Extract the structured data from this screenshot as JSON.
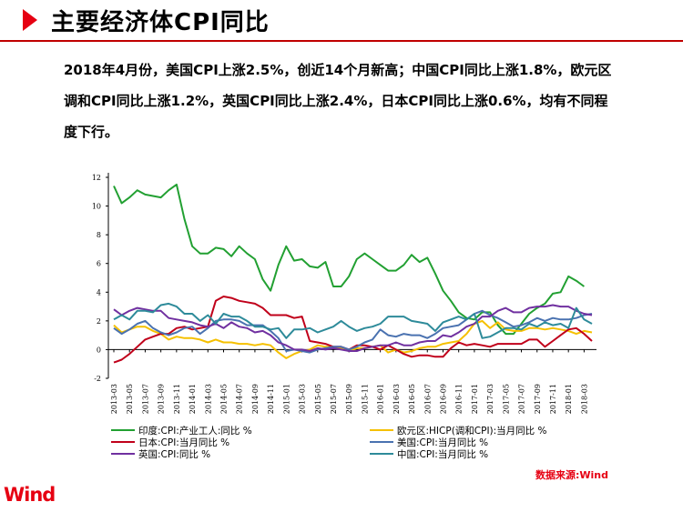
{
  "header": {
    "title": "主要经济体CPI同比",
    "description": "2018年4月份，美国CPI上涨2.5%，创近14个月新高；中国CPI同比上涨1.8%，欧元区调和CPI同比上涨1.2%，英国CPI同比上涨2.4%，日本CPI同比上涨0.6%，均有不同程度下行。"
  },
  "footer": {
    "source": "数据来源:Wind",
    "logo": "Wind"
  },
  "chart_data": {
    "type": "line",
    "ylim": [
      -2,
      12
    ],
    "yticks": [
      -2,
      0,
      2,
      4,
      6,
      8,
      10,
      12
    ],
    "x": [
      "2013-03",
      "2013-04",
      "2013-05",
      "2013-06",
      "2013-07",
      "2013-08",
      "2013-09",
      "2013-10",
      "2013-11",
      "2013-12",
      "2014-01",
      "2014-02",
      "2014-03",
      "2014-04",
      "2014-05",
      "2014-06",
      "2014-07",
      "2014-08",
      "2014-09",
      "2014-10",
      "2014-11",
      "2014-12",
      "2015-01",
      "2015-02",
      "2015-03",
      "2015-04",
      "2015-05",
      "2015-06",
      "2015-07",
      "2015-08",
      "2015-09",
      "2015-10",
      "2015-11",
      "2015-12",
      "2016-01",
      "2016-02",
      "2016-03",
      "2016-04",
      "2016-05",
      "2016-06",
      "2016-07",
      "2016-08",
      "2016-09",
      "2016-10",
      "2016-11",
      "2016-12",
      "2017-01",
      "2017-02",
      "2017-03",
      "2017-04",
      "2017-05",
      "2017-06",
      "2017-07",
      "2017-08",
      "2017-09",
      "2017-10",
      "2017-11",
      "2017-12",
      "2018-01",
      "2018-02",
      "2018-03",
      "2018-04"
    ],
    "xticks": [
      "2013-03",
      "2013-05",
      "2013-07",
      "2013-09",
      "2013-11",
      "2014-01",
      "2014-03",
      "2014-05",
      "2014-07",
      "2014-09",
      "2014-11",
      "2015-01",
      "2015-03",
      "2015-05",
      "2015-07",
      "2015-09",
      "2015-11",
      "2016-01",
      "2016-03",
      "2016-05",
      "2016-07",
      "2016-09",
      "2016-11",
      "2017-01",
      "2017-03",
      "2017-05",
      "2017-07",
      "2017-09",
      "2017-11",
      "2018-01",
      "2018-03"
    ],
    "legend_position": "bottom",
    "series": [
      {
        "name": "印度:CPI:产业工人:同比 %",
        "color": "#22a032",
        "values": [
          11.4,
          10.2,
          10.6,
          11.1,
          10.8,
          10.7,
          10.6,
          11.1,
          11.5,
          9.1,
          7.2,
          6.7,
          6.7,
          7.1,
          7.0,
          6.5,
          7.2,
          6.7,
          6.3,
          4.9,
          4.1,
          5.9,
          7.2,
          6.2,
          6.3,
          5.8,
          5.7,
          6.1,
          4.4,
          4.4,
          5.1,
          6.3,
          6.7,
          6.3,
          5.9,
          5.5,
          5.5,
          5.9,
          6.6,
          6.1,
          6.4,
          5.3,
          4.1,
          3.4,
          2.6,
          2.2,
          2.1,
          2.6,
          2.6,
          1.7,
          1.1,
          1.1,
          1.8,
          2.5,
          2.9,
          3.2,
          3.9,
          4.0,
          5.1,
          4.8,
          4.4,
          null
        ]
      },
      {
        "name": "欧元区:HICP(调和CPI):当月同比 %",
        "color": "#f5c000",
        "values": [
          1.7,
          1.2,
          1.4,
          1.6,
          1.6,
          1.3,
          1.1,
          0.7,
          0.9,
          0.8,
          0.8,
          0.7,
          0.5,
          0.7,
          0.5,
          0.5,
          0.4,
          0.4,
          0.3,
          0.4,
          0.3,
          -0.2,
          -0.6,
          -0.3,
          -0.1,
          0.0,
          0.3,
          0.2,
          0.2,
          0.1,
          -0.1,
          0.1,
          0.1,
          0.2,
          0.3,
          -0.2,
          0.0,
          -0.2,
          -0.1,
          0.1,
          0.2,
          0.2,
          0.4,
          0.5,
          0.6,
          1.1,
          1.8,
          2.0,
          1.5,
          1.9,
          1.4,
          1.3,
          1.3,
          1.5,
          1.5,
          1.4,
          1.5,
          1.4,
          1.3,
          1.1,
          1.3,
          1.2
        ]
      },
      {
        "name": "日本:CPI:当月同比 %",
        "color": "#c0001a",
        "values": [
          -0.9,
          -0.7,
          -0.3,
          0.2,
          0.7,
          0.9,
          1.1,
          1.1,
          1.5,
          1.6,
          1.4,
          1.5,
          1.6,
          3.4,
          3.7,
          3.6,
          3.4,
          3.3,
          3.2,
          2.9,
          2.4,
          2.4,
          2.4,
          2.2,
          2.3,
          0.6,
          0.5,
          0.4,
          0.2,
          0.2,
          0.0,
          0.3,
          0.3,
          0.2,
          0.0,
          0.3,
          0.0,
          -0.3,
          -0.5,
          -0.4,
          -0.4,
          -0.5,
          -0.5,
          0.1,
          0.5,
          0.3,
          0.4,
          0.3,
          0.2,
          0.4,
          0.4,
          0.4,
          0.4,
          0.7,
          0.7,
          0.2,
          0.6,
          1.0,
          1.4,
          1.5,
          1.1,
          0.6
        ]
      },
      {
        "name": "美国:CPI:当月同比 %",
        "color": "#4a72b0",
        "values": [
          1.5,
          1.1,
          1.4,
          1.8,
          2.0,
          1.5,
          1.2,
          1.0,
          1.2,
          1.5,
          1.6,
          1.1,
          1.5,
          2.0,
          2.1,
          2.1,
          2.0,
          1.7,
          1.7,
          1.7,
          1.3,
          0.8,
          -0.1,
          0.0,
          -0.1,
          -0.2,
          0.0,
          0.1,
          0.2,
          0.2,
          0.0,
          0.2,
          0.5,
          0.7,
          1.4,
          1.0,
          0.9,
          1.1,
          1.0,
          1.0,
          0.8,
          1.1,
          1.5,
          1.6,
          1.7,
          2.1,
          2.5,
          2.7,
          2.4,
          2.2,
          1.9,
          1.6,
          1.7,
          1.9,
          2.2,
          2.0,
          2.2,
          2.1,
          2.1,
          2.2,
          2.4,
          2.5
        ]
      },
      {
        "name": "英国:CPI:同比 %",
        "color": "#7030a0",
        "values": [
          2.8,
          2.4,
          2.7,
          2.9,
          2.8,
          2.7,
          2.7,
          2.2,
          2.1,
          2.0,
          1.9,
          1.7,
          1.6,
          1.8,
          1.5,
          1.9,
          1.6,
          1.5,
          1.2,
          1.3,
          1.0,
          0.5,
          0.3,
          0.0,
          0.0,
          -0.1,
          0.1,
          0.0,
          0.1,
          0.0,
          -0.1,
          -0.1,
          0.1,
          0.2,
          0.3,
          0.3,
          0.5,
          0.3,
          0.3,
          0.5,
          0.6,
          0.6,
          1.0,
          0.9,
          1.2,
          1.6,
          1.8,
          2.3,
          2.3,
          2.7,
          2.9,
          2.6,
          2.6,
          2.9,
          3.0,
          3.0,
          3.1,
          3.0,
          3.0,
          2.7,
          2.5,
          2.4
        ]
      },
      {
        "name": "中国:CPI:当月同比 %",
        "color": "#2e8b9a",
        "values": [
          2.1,
          2.4,
          2.1,
          2.7,
          2.7,
          2.6,
          3.1,
          3.2,
          3.0,
          2.5,
          2.5,
          2.0,
          2.4,
          1.8,
          2.5,
          2.3,
          2.3,
          2.0,
          1.6,
          1.6,
          1.4,
          1.5,
          0.8,
          1.4,
          1.4,
          1.5,
          1.2,
          1.4,
          1.6,
          2.0,
          1.6,
          1.3,
          1.5,
          1.6,
          1.8,
          2.3,
          2.3,
          2.3,
          2.0,
          1.9,
          1.8,
          1.3,
          1.9,
          2.1,
          2.3,
          2.1,
          2.5,
          0.8,
          0.9,
          1.2,
          1.5,
          1.5,
          1.4,
          1.8,
          1.6,
          1.9,
          1.7,
          1.8,
          1.5,
          2.9,
          2.1,
          1.8
        ]
      }
    ]
  }
}
